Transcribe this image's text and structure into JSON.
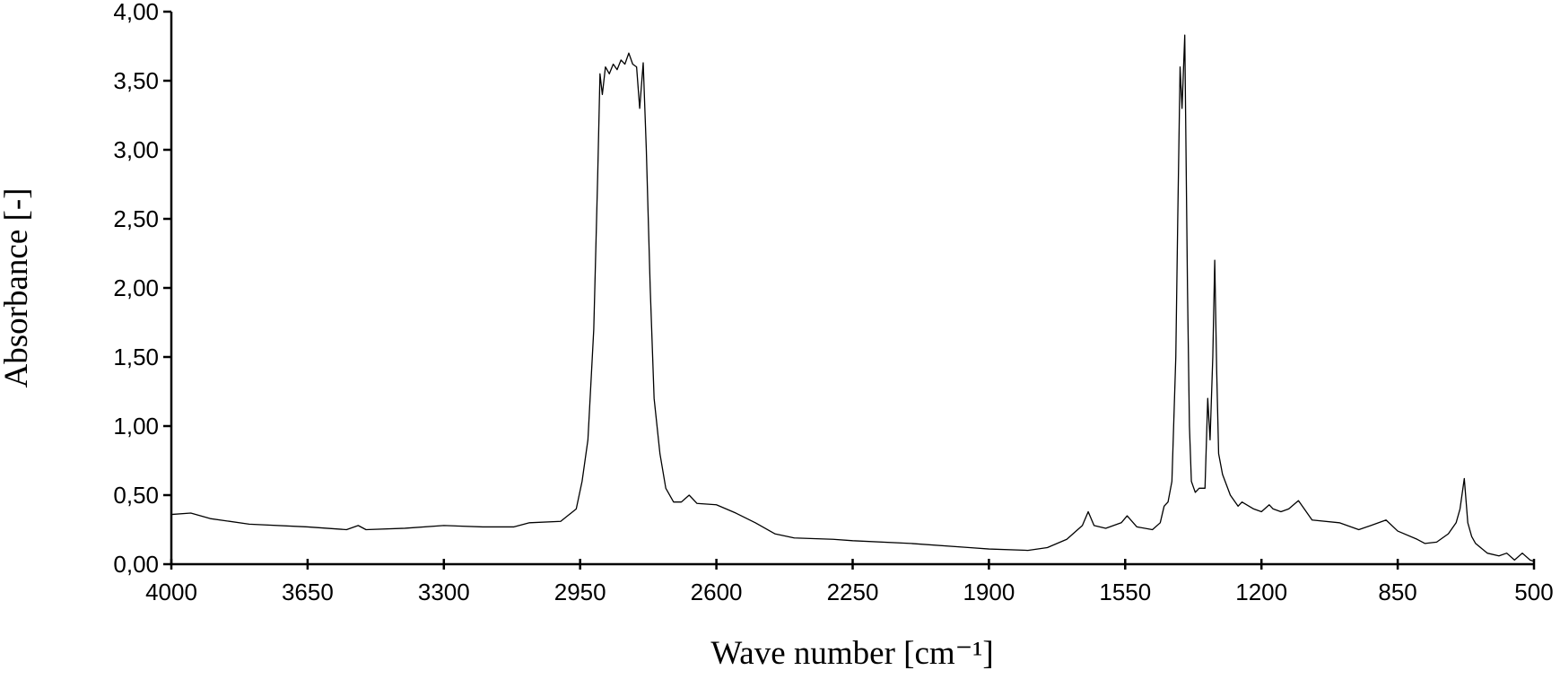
{
  "chart_data": {
    "type": "line",
    "x_label": "Wave number [cm⁻¹]",
    "y_label": "Absorbance [-]",
    "xlim": [
      4000,
      500
    ],
    "ylim": [
      0,
      4
    ],
    "xticks": [
      4000,
      3650,
      3300,
      2950,
      2600,
      2250,
      1900,
      1550,
      1200,
      850,
      500
    ],
    "yticks": [
      {
        "value": 0,
        "label": "0,00"
      },
      {
        "value": 0.5,
        "label": "0,50"
      },
      {
        "value": 1,
        "label": "1,00"
      },
      {
        "value": 1.5,
        "label": "1,50"
      },
      {
        "value": 2,
        "label": "2,00"
      },
      {
        "value": 2.5,
        "label": "2,50"
      },
      {
        "value": 3,
        "label": "3,00"
      },
      {
        "value": 3.5,
        "label": "3,50"
      },
      {
        "value": 4,
        "label": "4,00"
      }
    ],
    "grid": false,
    "x": [
      4000,
      3950,
      3900,
      3800,
      3650,
      3550,
      3520,
      3500,
      3400,
      3300,
      3200,
      3120,
      3080,
      3000,
      2960,
      2945,
      2930,
      2915,
      2905,
      2899,
      2893,
      2885,
      2875,
      2865,
      2855,
      2845,
      2835,
      2825,
      2815,
      2805,
      2797,
      2788,
      2780,
      2770,
      2760,
      2745,
      2730,
      2710,
      2690,
      2670,
      2650,
      2600,
      2550,
      2500,
      2450,
      2400,
      2300,
      2250,
      2100,
      1950,
      1900,
      1800,
      1750,
      1700,
      1660,
      1645,
      1630,
      1600,
      1560,
      1545,
      1520,
      1480,
      1460,
      1450,
      1440,
      1430,
      1420,
      1415,
      1409,
      1404,
      1397,
      1390,
      1385,
      1380,
      1370,
      1360,
      1345,
      1338,
      1332,
      1325,
      1320,
      1315,
      1310,
      1300,
      1280,
      1260,
      1250,
      1220,
      1200,
      1180,
      1170,
      1150,
      1130,
      1105,
      1090,
      1070,
      1000,
      950,
      919,
      880,
      850,
      800,
      780,
      750,
      720,
      700,
      690,
      679,
      670,
      660,
      650,
      620,
      590,
      570,
      550,
      530,
      510,
      500
    ],
    "series": [
      {
        "color": "#000000",
        "values": [
          0.36,
          0.37,
          0.33,
          0.29,
          0.27,
          0.25,
          0.28,
          0.25,
          0.26,
          0.28,
          0.27,
          0.27,
          0.3,
          0.31,
          0.4,
          0.6,
          0.9,
          1.7,
          2.8,
          3.55,
          3.4,
          3.6,
          3.55,
          3.62,
          3.58,
          3.65,
          3.62,
          3.7,
          3.62,
          3.6,
          3.3,
          3.63,
          3.0,
          2.0,
          1.2,
          0.8,
          0.55,
          0.45,
          0.45,
          0.5,
          0.44,
          0.43,
          0.37,
          0.3,
          0.22,
          0.19,
          0.18,
          0.17,
          0.15,
          0.12,
          0.11,
          0.1,
          0.12,
          0.18,
          0.28,
          0.38,
          0.28,
          0.26,
          0.3,
          0.35,
          0.27,
          0.25,
          0.3,
          0.42,
          0.45,
          0.6,
          1.5,
          2.5,
          3.6,
          3.3,
          3.83,
          2.0,
          1.0,
          0.6,
          0.52,
          0.55,
          0.55,
          1.2,
          0.9,
          1.5,
          2.2,
          1.4,
          0.8,
          0.65,
          0.5,
          0.42,
          0.45,
          0.4,
          0.38,
          0.43,
          0.4,
          0.38,
          0.4,
          0.46,
          0.4,
          0.32,
          0.3,
          0.25,
          0.28,
          0.32,
          0.24,
          0.18,
          0.15,
          0.16,
          0.22,
          0.3,
          0.4,
          0.62,
          0.3,
          0.2,
          0.15,
          0.08,
          0.06,
          0.08,
          0.03,
          0.08,
          0.03,
          0.02
        ]
      }
    ]
  }
}
